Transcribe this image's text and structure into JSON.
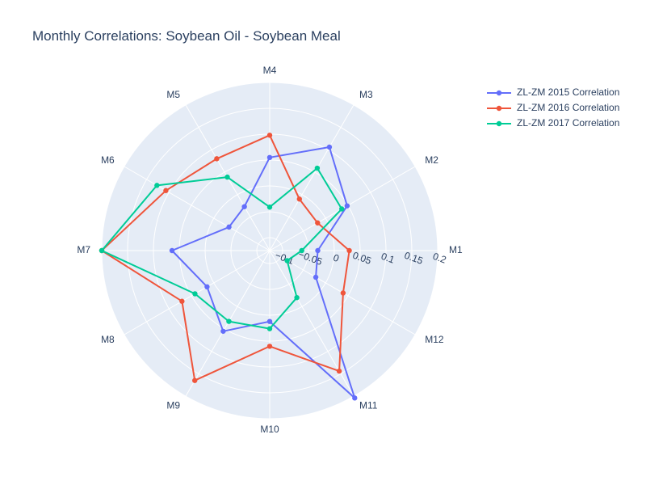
{
  "chart_data": {
    "type": "polar-line",
    "title": "Monthly Correlations: Soybean Oil - Soybean Meal",
    "categories": [
      "M1",
      "M2",
      "M3",
      "M4",
      "M5",
      "M6",
      "M7",
      "M8",
      "M9",
      "M10",
      "M11",
      "M12"
    ],
    "radial_range": [
      -0.125,
      0.2
    ],
    "radial_ticks": [
      -0.1,
      -0.05,
      0,
      0.05,
      0.1,
      0.15,
      0.2
    ],
    "radial_tick_labels": [
      "−0.1",
      "−0.05",
      "0",
      "0.05",
      "0.1",
      "0.15",
      "0.2"
    ],
    "grid": true,
    "legend_position": "top-right",
    "series": [
      {
        "name": "ZL-ZM 2015 Correlation",
        "color": "#636efa",
        "values": [
          -0.032,
          0.048,
          0.106,
          0.055,
          -0.027,
          -0.034,
          0.064,
          0.015,
          0.055,
          0.012,
          0.204,
          -0.022
        ]
      },
      {
        "name": "ZL-ZM 2016 Correlation",
        "color": "#EF553B",
        "values": [
          0.029,
          -0.018,
          -0.01,
          0.098,
          0.08,
          0.107,
          0.2,
          0.071,
          0.165,
          0.06,
          0.144,
          0.039
        ]
      },
      {
        "name": "ZL-ZM 2017 Correlation",
        "color": "#00cc96",
        "values": [
          -0.063,
          0.036,
          0.059,
          -0.041,
          0.039,
          0.127,
          0.2,
          0.042,
          0.033,
          0.026,
          -0.02,
          -0.086
        ]
      }
    ]
  }
}
